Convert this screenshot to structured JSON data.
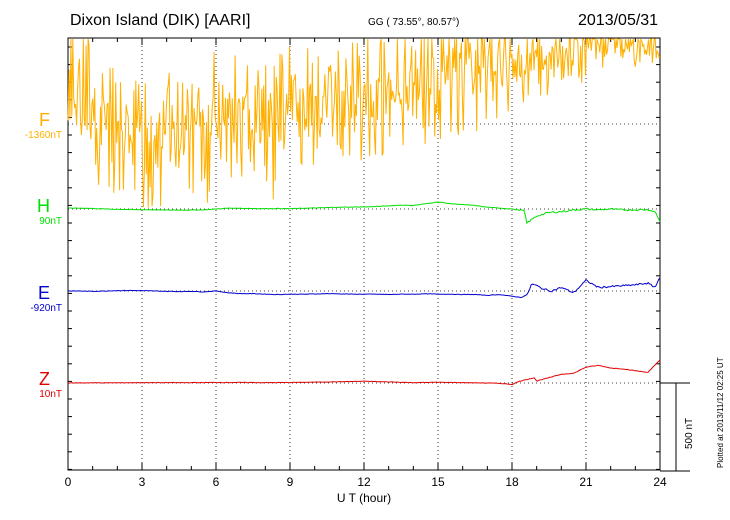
{
  "header": {
    "station": "Dixon Island (DIK)  [AARI]",
    "coords": "GG ( 73.55°,  80.57°)",
    "date": "2013/05/31"
  },
  "footer": {
    "plotted": "Plotted at 2013/11/12 02:25 UT"
  },
  "colors": {
    "F": "#ffb000",
    "H": "#00e000",
    "E": "#0000d0",
    "Z": "#e00000"
  },
  "chart_data": {
    "type": "line",
    "xlabel": "U T (hour)",
    "xlim": [
      0,
      24
    ],
    "xticks": [
      "0",
      "3",
      "6",
      "9",
      "12",
      "15",
      "18",
      "21",
      "24"
    ],
    "scale_bar": {
      "label": "500 nT",
      "value": 500
    },
    "series": [
      {
        "name": "F",
        "baseline_label": "-1360nT",
        "baseline_nT": -1360,
        "color": "#ffb000",
        "x": [
          0,
          0.5,
          1,
          1.5,
          2,
          2.5,
          3,
          3.5,
          4,
          4.5,
          5,
          5.5,
          6,
          6.5,
          7,
          7.5,
          8,
          8.5,
          9,
          9.5,
          10,
          10.5,
          11,
          11.5,
          12,
          12.5,
          13,
          13.5,
          14,
          14.5,
          15,
          15.5,
          16,
          16.5,
          17,
          17.5,
          18,
          18.5,
          19,
          19.5,
          20,
          20.5,
          21,
          21.5,
          22,
          22.5,
          23,
          23.5,
          24
        ],
        "mean": [
          200,
          150,
          60,
          -20,
          -40,
          -60,
          -70,
          -80,
          -60,
          -40,
          -30,
          -60,
          20,
          30,
          20,
          40,
          20,
          40,
          60,
          80,
          80,
          100,
          120,
          140,
          160,
          180,
          180,
          200,
          220,
          240,
          260,
          280,
          300,
          300,
          320,
          300,
          320,
          340,
          360,
          380,
          420,
          430,
          440,
          450,
          450,
          450,
          460,
          470,
          450
        ],
        "upper": [
          660,
          640,
          440,
          360,
          300,
          280,
          260,
          280,
          320,
          340,
          330,
          300,
          440,
          420,
          400,
          400,
          420,
          400,
          440,
          460,
          460,
          480,
          500,
          520,
          540,
          560,
          560,
          580,
          580,
          600,
          620,
          640,
          620,
          620,
          640,
          640,
          640,
          640,
          680,
          640,
          640,
          680,
          680,
          660,
          680,
          660,
          680,
          680,
          620
        ],
        "lower": [
          -120,
          -220,
          -340,
          -500,
          -420,
          -460,
          -520,
          -460,
          -480,
          -420,
          -380,
          -560,
          -300,
          -340,
          -320,
          -300,
          -460,
          -600,
          -280,
          -320,
          -300,
          -260,
          -240,
          -200,
          -260,
          -200,
          -180,
          -140,
          -140,
          -120,
          -100,
          -140,
          -60,
          -120,
          0,
          -40,
          80,
          80,
          100,
          100,
          200,
          180,
          240,
          240,
          280,
          280,
          320,
          320,
          280
        ]
      },
      {
        "name": "H",
        "baseline_label": "90nT",
        "baseline_nT": 90,
        "color": "#00e000",
        "x": [
          0,
          0.5,
          1,
          1.5,
          2,
          2.5,
          3,
          3.5,
          4,
          4.5,
          5,
          5.5,
          6,
          6.5,
          7,
          7.5,
          8,
          8.5,
          9,
          9.5,
          10,
          10.5,
          11,
          11.5,
          12,
          12.5,
          13,
          13.5,
          14,
          14.5,
          15,
          15.5,
          16,
          16.5,
          17,
          17.5,
          18,
          18.2,
          18.5,
          18.6,
          18.8,
          19,
          19.5,
          20,
          20.5,
          21,
          21.5,
          22,
          22.5,
          23,
          23.5,
          23.8,
          24
        ],
        "y": [
          5,
          5,
          3,
          0,
          -2,
          -3,
          -4,
          -5,
          -6,
          -6,
          -6,
          -5,
          0,
          5,
          4,
          3,
          2,
          3,
          2,
          4,
          6,
          8,
          10,
          11,
          12,
          14,
          18,
          22,
          20,
          30,
          40,
          30,
          25,
          20,
          10,
          5,
          0,
          -5,
          -10,
          -80,
          -60,
          -40,
          -20,
          -15,
          -5,
          0,
          -5,
          0,
          -5,
          -5,
          -3,
          -15,
          -70
        ]
      },
      {
        "name": "E",
        "baseline_label": "-920nT",
        "baseline_nT": -920,
        "color": "#0000d0",
        "x": [
          0,
          0.5,
          1,
          1.5,
          2,
          2.5,
          3,
          3.5,
          4,
          4.5,
          5,
          5.5,
          6,
          6.5,
          7,
          7.5,
          8,
          8.5,
          9,
          9.5,
          10,
          10.5,
          11,
          11.5,
          12,
          12.5,
          13,
          13.5,
          14,
          14.5,
          15,
          15.5,
          16,
          16.5,
          17,
          17.5,
          18,
          18.3,
          18.6,
          18.8,
          19,
          19.3,
          19.6,
          20,
          20.5,
          21,
          21.5,
          22,
          22.5,
          23,
          23.5,
          23.8,
          24
        ],
        "y": [
          0,
          0,
          -2,
          0,
          2,
          3,
          2,
          0,
          -2,
          -3,
          -2,
          -5,
          0,
          -10,
          -15,
          -15,
          -18,
          -20,
          -18,
          -18,
          -17,
          -15,
          -16,
          -18,
          -18,
          -18,
          -20,
          -18,
          -18,
          -16,
          -18,
          -18,
          -20,
          -20,
          -25,
          -20,
          -30,
          -35,
          -25,
          40,
          30,
          10,
          0,
          20,
          -10,
          60,
          20,
          25,
          30,
          35,
          45,
          20,
          80
        ]
      },
      {
        "name": "Z",
        "baseline_label": "10nT",
        "baseline_nT": 10,
        "color": "#e00000",
        "x": [
          0,
          1,
          2,
          3,
          4,
          5,
          6,
          7,
          8,
          9,
          10,
          11,
          12,
          13,
          14,
          15,
          16,
          17,
          17.5,
          18,
          18.3,
          18.6,
          18.9,
          19,
          19.2,
          19.5,
          20,
          20.5,
          21,
          21.5,
          22,
          22.5,
          23,
          23.5,
          24
        ],
        "y": [
          0,
          1,
          1,
          2,
          2,
          2,
          3,
          3,
          2,
          3,
          5,
          7,
          10,
          6,
          2,
          4,
          2,
          0,
          -2,
          -8,
          10,
          20,
          30,
          10,
          20,
          30,
          50,
          55,
          90,
          100,
          85,
          80,
          70,
          60,
          130
        ]
      }
    ]
  }
}
